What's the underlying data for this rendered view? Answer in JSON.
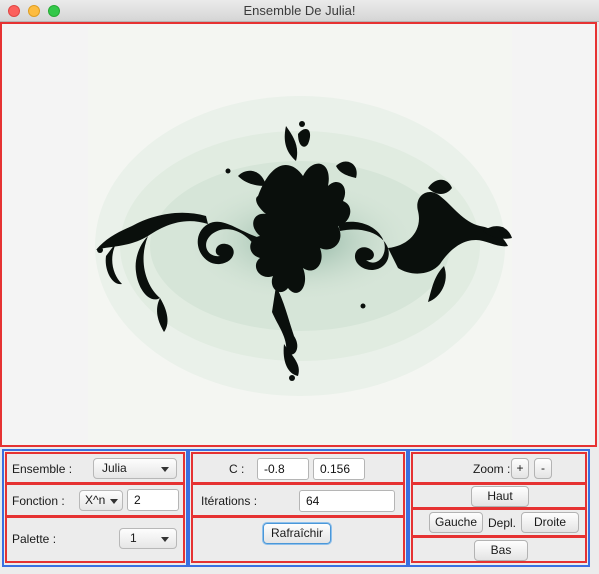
{
  "window": {
    "title": "Ensemble De Julia!"
  },
  "left_panel": {
    "set_label": "Ensemble :",
    "set_value": "Julia",
    "function_label": "Fonction :",
    "function_value": "X^n",
    "exponent_value": "2",
    "palette_label": "Palette :",
    "palette_value": "1"
  },
  "center_panel": {
    "c_label": "C :",
    "c_real": "-0.8",
    "c_imag": "0.156",
    "iterations_label": "Itérations :",
    "iterations_value": "64",
    "refresh_label": "Rafraîchir"
  },
  "right_panel": {
    "zoom_label": "Zoom :",
    "zoom_in_label": "+",
    "zoom_out_label": "-",
    "up_label": "Haut",
    "left_label": "Gauche",
    "move_label": "Depl.",
    "right_label": "Droite",
    "down_label": "Bas"
  },
  "colors": {
    "outline_red": "#e63232",
    "outline_blue": "#3a6fe0",
    "fractal_dark": "#0a0f0c",
    "fractal_light": "#e6efe6"
  },
  "icons": [
    "close-dot-icon",
    "minimize-dot-icon",
    "maximize-dot-icon",
    "dropdown-arrow-icon"
  ]
}
